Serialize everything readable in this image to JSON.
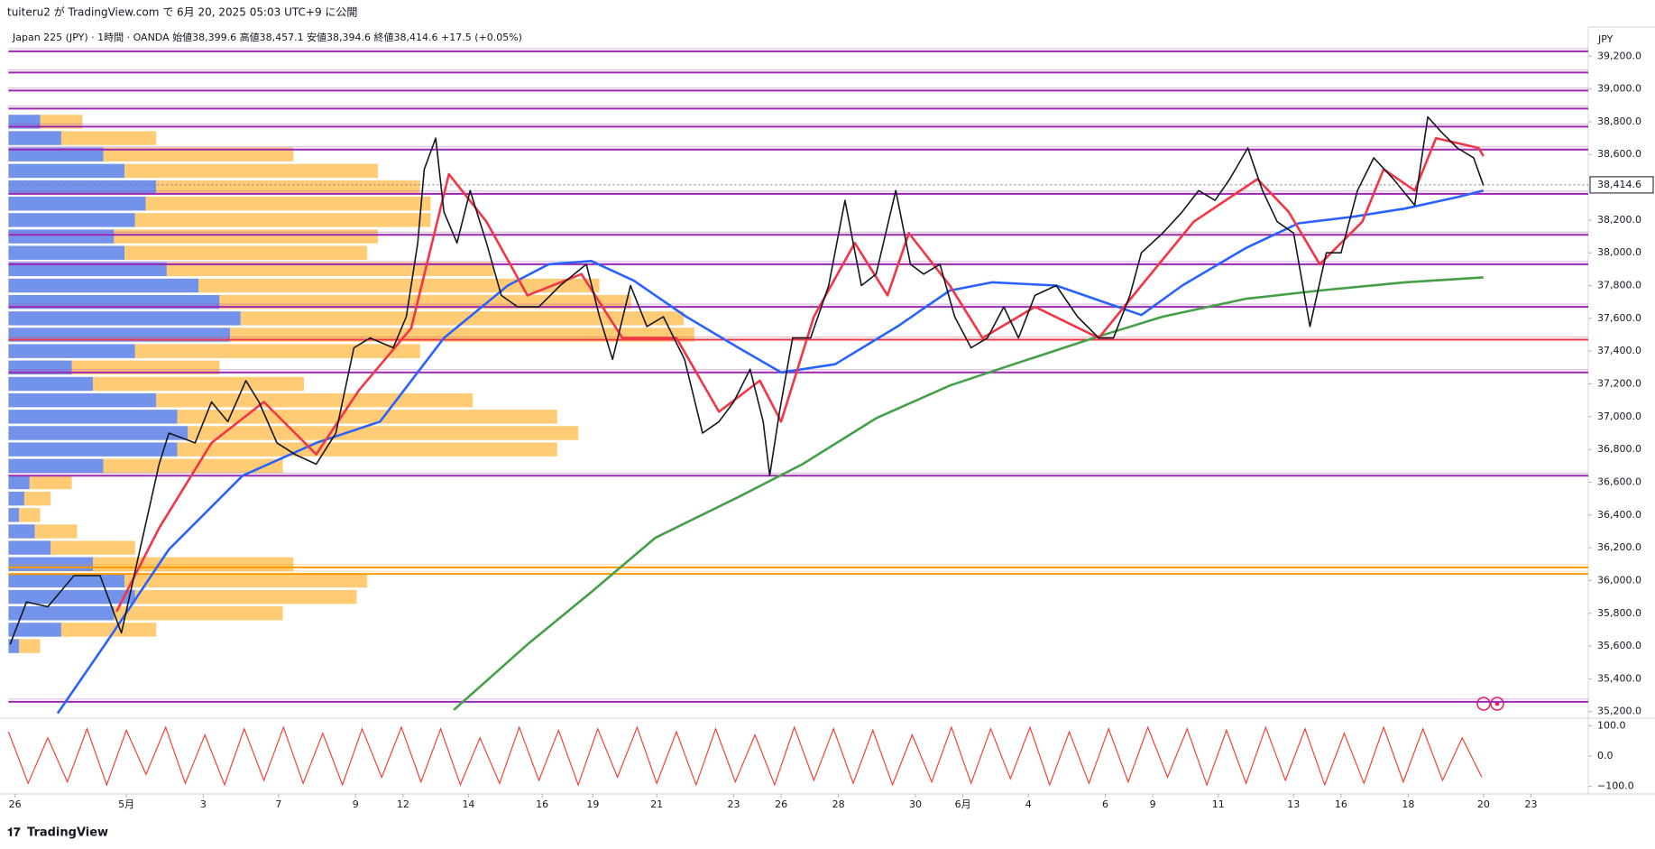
{
  "chart_data": {
    "type": "line",
    "header": "tuiteru2 が TradingView.com で 6月 20, 2025 05:03 UTC+9 に公開",
    "subtitle": "Japan 225 (JPY) · 1時間 · OANDA  始値38,399.6  高値38,457.1  安値38,394.6  終値38,414.6  +17.5 (+0.05%)",
    "currency": "JPY",
    "footer": "TradingView",
    "last_price": {
      "value": 38414.6,
      "label": "38,414.6"
    },
    "xlim": [
      0,
      965
    ],
    "xticks": [
      {
        "value": 4,
        "label": "26"
      },
      {
        "value": 72,
        "label": "5月"
      },
      {
        "value": 119,
        "label": "3"
      },
      {
        "value": 165,
        "label": "7"
      },
      {
        "value": 212,
        "label": "9"
      },
      {
        "value": 241,
        "label": "12"
      },
      {
        "value": 281,
        "label": "14"
      },
      {
        "value": 326,
        "label": "16"
      },
      {
        "value": 357,
        "label": "19"
      },
      {
        "value": 396,
        "label": "21"
      },
      {
        "value": 443,
        "label": "23"
      },
      {
        "value": 472,
        "label": "26"
      },
      {
        "value": 507,
        "label": "28"
      },
      {
        "value": 554,
        "label": "30"
      },
      {
        "value": 583,
        "label": "6月"
      },
      {
        "value": 623,
        "label": "4"
      },
      {
        "value": 670,
        "label": "6"
      },
      {
        "value": 699,
        "label": "9"
      },
      {
        "value": 739,
        "label": "11"
      },
      {
        "value": 785,
        "label": "13"
      },
      {
        "value": 814,
        "label": "16"
      },
      {
        "value": 855,
        "label": "18"
      },
      {
        "value": 901,
        "label": "20"
      },
      {
        "value": 930,
        "label": "23"
      }
    ],
    "ylim": [
      35160,
      39240
    ],
    "yticks": [
      {
        "value": 35200,
        "label": "35,200.0"
      },
      {
        "value": 35400,
        "label": "35,400.0"
      },
      {
        "value": 35600,
        "label": "35,600.0"
      },
      {
        "value": 35800,
        "label": "35,800.0"
      },
      {
        "value": 36000,
        "label": "36,000.0"
      },
      {
        "value": 36200,
        "label": "36,200.0"
      },
      {
        "value": 36400,
        "label": "36,400.0"
      },
      {
        "value": 36600,
        "label": "36,600.0"
      },
      {
        "value": 36800,
        "label": "36,800.0"
      },
      {
        "value": 37000,
        "label": "37,000.0"
      },
      {
        "value": 37200,
        "label": "37,200.0"
      },
      {
        "value": 37400,
        "label": "37,400.0"
      },
      {
        "value": 37600,
        "label": "37,600.0"
      },
      {
        "value": 37800,
        "label": "37,800.0"
      },
      {
        "value": 38000,
        "label": "38,000.0"
      },
      {
        "value": 38200,
        "label": "38,200.0"
      },
      {
        "value": 38600,
        "label": "38,600.0"
      },
      {
        "value": 38800,
        "label": "38,800.0"
      },
      {
        "value": 39000,
        "label": "39,000.0"
      },
      {
        "value": 39200,
        "label": "39,200.0"
      }
    ],
    "series": [
      {
        "color": "#131722",
        "x": [
          1,
          11,
          24,
          40,
          56,
          69,
          79,
          92,
          98,
          114,
          124,
          134,
          145,
          153,
          164,
          175,
          188,
          200,
          211,
          221,
          235,
          243,
          250,
          254,
          261,
          266,
          274,
          282,
          292,
          301,
          311,
          324,
          337,
          353,
          361,
          369,
          380,
          390,
          400,
          413,
          424,
          434,
          443,
          453,
          461,
          465,
          471,
          479,
          490,
          501,
          511,
          521,
          530,
          542,
          551,
          559,
          569,
          578,
          588,
          598,
          608,
          617,
          627,
          640,
          653,
          666,
          675,
          685,
          692,
          705,
          717,
          727,
          737,
          746,
          757,
          766,
          775,
          785,
          795,
          805,
          814,
          824,
          834,
          846,
          859,
          867,
          875,
          885,
          895,
          901
        ],
        "values": [
          35610,
          35870,
          35840,
          36030,
          36030,
          35680,
          36130,
          36710,
          36900,
          36840,
          37090,
          36970,
          37220,
          37090,
          36840,
          36770,
          36710,
          36900,
          37420,
          37480,
          37420,
          37610,
          38060,
          38510,
          38700,
          38250,
          38060,
          38380,
          38060,
          37740,
          37670,
          37670,
          37800,
          37930,
          37610,
          37350,
          37800,
          37550,
          37610,
          37350,
          36900,
          36970,
          37090,
          37290,
          36970,
          36640,
          37030,
          37480,
          37480,
          37800,
          38320,
          37800,
          37870,
          38380,
          37930,
          37870,
          37930,
          37610,
          37420,
          37480,
          37670,
          37480,
          37740,
          37800,
          37610,
          37480,
          37480,
          37740,
          38000,
          38120,
          38250,
          38380,
          38320,
          38450,
          38640,
          38380,
          38190,
          38120,
          37550,
          38000,
          38000,
          38380,
          38580,
          38450,
          38290,
          38830,
          38740,
          38640,
          38580,
          38410
        ]
      },
      {
        "color": "#f23645",
        "x": [
          66,
          92,
          124,
          156,
          188,
          214,
          246,
          269,
          292,
          317,
          350,
          375,
          408,
          434,
          459,
          472,
          492,
          517,
          537,
          550,
          575,
          595,
          627,
          666,
          692,
          724,
          763,
          782,
          801,
          827,
          840,
          859,
          872,
          898,
          901
        ],
        "values": [
          35810,
          36320,
          36840,
          37090,
          36770,
          37160,
          37540,
          38480,
          38190,
          37740,
          37870,
          37480,
          37480,
          37030,
          37220,
          36970,
          37610,
          38060,
          37740,
          38120,
          37800,
          37480,
          37670,
          37480,
          37800,
          38190,
          38450,
          38250,
          37930,
          38190,
          38510,
          38380,
          38700,
          38640,
          38590
        ]
      },
      {
        "color": "#2962ff",
        "x": [
          30,
          59,
          98,
          143,
          188,
          227,
          266,
          305,
          330,
          356,
          382,
          414,
          446,
          472,
          505,
          543,
          575,
          601,
          640,
          666,
          692,
          717,
          756,
          788,
          821,
          853,
          885,
          901
        ],
        "values": [
          35190,
          35610,
          36190,
          36640,
          36840,
          36970,
          37480,
          37800,
          37930,
          37950,
          37830,
          37610,
          37420,
          37270,
          37320,
          37550,
          37770,
          37820,
          37800,
          37710,
          37620,
          37800,
          38030,
          38180,
          38220,
          38270,
          38340,
          38380
        ]
      },
      {
        "color": "#43a047",
        "x": [
          272,
          317,
          356,
          395,
          446,
          485,
          530,
          575,
          614,
          666,
          705,
          756,
          801,
          853,
          901
        ],
        "values": [
          35210,
          35610,
          35930,
          36260,
          36510,
          36710,
          36990,
          37190,
          37320,
          37490,
          37610,
          37720,
          37770,
          37820,
          37850
        ]
      }
    ],
    "levels": [
      {
        "value": 39230,
        "color": "#9c27b0"
      },
      {
        "value": 39100,
        "color": "#9c27b0"
      },
      {
        "value": 38990,
        "color": "#9c27b0"
      },
      {
        "value": 38880,
        "color": "#9c27b0"
      },
      {
        "value": 38770,
        "color": "#9c27b0"
      },
      {
        "value": 38630,
        "color": "#9c27b0"
      },
      {
        "value": 38360,
        "color": "#9c27b0"
      },
      {
        "value": 38110,
        "color": "#9c27b0"
      },
      {
        "value": 37930,
        "color": "#9c27b0"
      },
      {
        "value": 37670,
        "color": "#9c27b0"
      },
      {
        "value": 37470,
        "color": "#f23645"
      },
      {
        "value": 37270,
        "color": "#9c27b0"
      },
      {
        "value": 36640,
        "color": "#9c27b0"
      },
      {
        "value": 36080,
        "color": "#ff9800"
      },
      {
        "value": 36040,
        "color": "#ff9800"
      },
      {
        "value": 35260,
        "color": "#9c27b0"
      }
    ],
    "volume_profile": {
      "up_color": "#5b7fe6",
      "down_color": "#ffc25c",
      "prices": [
        38800,
        38700,
        38600,
        38500,
        38400,
        38300,
        38200,
        38100,
        38000,
        37900,
        37800,
        37700,
        37600,
        37500,
        37400,
        37300,
        37200,
        37100,
        37000,
        36900,
        36800,
        36700,
        36600,
        36500,
        36400,
        36300,
        36200,
        36100,
        36000,
        35900,
        35800,
        35700,
        35600
      ],
      "up": [
        30,
        50,
        90,
        110,
        140,
        130,
        120,
        100,
        110,
        150,
        180,
        200,
        220,
        210,
        120,
        60,
        80,
        140,
        160,
        170,
        160,
        90,
        20,
        15,
        10,
        25,
        40,
        80,
        110,
        120,
        100,
        50,
        10
      ],
      "down": [
        40,
        90,
        180,
        240,
        250,
        270,
        280,
        250,
        230,
        310,
        380,
        390,
        420,
        440,
        270,
        140,
        200,
        300,
        360,
        370,
        360,
        170,
        40,
        25,
        20,
        40,
        80,
        190,
        230,
        210,
        160,
        90,
        20
      ]
    },
    "oscillator": {
      "color": "#f44336",
      "ylim": [
        -125,
        125
      ],
      "yticks": [
        {
          "value": 100,
          "label": "100.0"
        },
        {
          "value": 0,
          "label": "0.0"
        },
        {
          "value": -100,
          "label": "−100.0"
        }
      ],
      "x": [
        0,
        12,
        24,
        36,
        48,
        60,
        72,
        84,
        96,
        108,
        120,
        132,
        144,
        156,
        168,
        180,
        192,
        204,
        216,
        228,
        240,
        252,
        264,
        276,
        288,
        300,
        312,
        324,
        336,
        348,
        360,
        372,
        384,
        396,
        408,
        420,
        432,
        444,
        456,
        468,
        480,
        492,
        504,
        516,
        528,
        540,
        552,
        564,
        576,
        588,
        600,
        612,
        624,
        636,
        648,
        660,
        672,
        684,
        696,
        708,
        720,
        732,
        744,
        756,
        768,
        780,
        792,
        804,
        816,
        828,
        840,
        852,
        864,
        876,
        888,
        900
      ],
      "values": [
        80,
        -90,
        60,
        -85,
        90,
        -95,
        85,
        -60,
        95,
        -90,
        70,
        -95,
        90,
        -80,
        95,
        -90,
        75,
        -95,
        90,
        -70,
        95,
        -85,
        90,
        -95,
        60,
        -90,
        95,
        -80,
        85,
        -95,
        90,
        -70,
        95,
        -90,
        80,
        -95,
        90,
        -85,
        70,
        -95,
        95,
        -80,
        90,
        -90,
        85,
        -95,
        70,
        -85,
        95,
        -90,
        90,
        -75,
        95,
        -95,
        80,
        -90,
        90,
        -85,
        95,
        -70,
        90,
        -95,
        85,
        -90,
        95,
        -80,
        90,
        -95,
        75,
        -90,
        95,
        -85,
        90,
        -80,
        60,
        -70
      ]
    }
  }
}
